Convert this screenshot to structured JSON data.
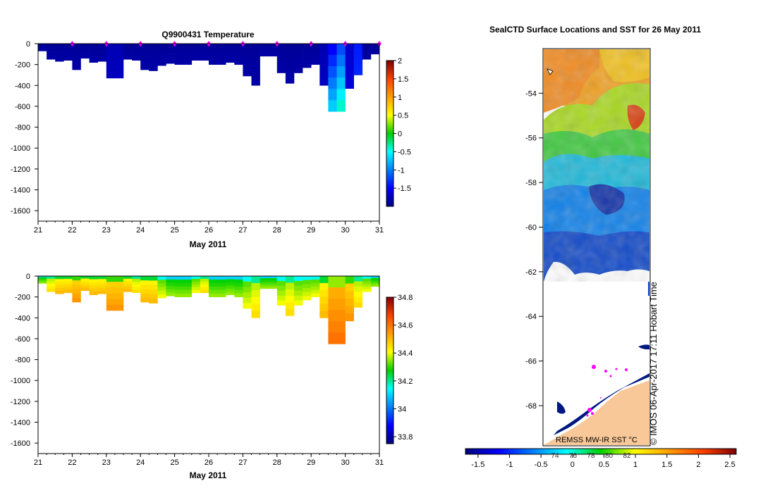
{
  "chart_data": [
    {
      "type": "heatmap",
      "title": "Q9900431  Temperature",
      "xlabel": "May 2011",
      "ylabel": "",
      "xlim": [
        21,
        31
      ],
      "ylim": [
        -1700,
        0
      ],
      "x_ticks": [
        "21",
        "22",
        "23",
        "24",
        "25",
        "26",
        "27",
        "28",
        "29",
        "30",
        "31"
      ],
      "y_ticks": [
        "0",
        "-200",
        "-400",
        "-600",
        "-800",
        "-1000",
        "-1200",
        "-1400",
        "-1600"
      ],
      "colorbar": {
        "min": -2,
        "max": 2,
        "ticks": [
          "2",
          "1.5",
          "1",
          "0.5",
          "0",
          "-0.5",
          "-1",
          "-1.5"
        ]
      },
      "profiles": [
        {
          "day": 21.0,
          "depth": 70,
          "value": -1.9
        },
        {
          "day": 21.25,
          "depth": 150,
          "value": -1.9
        },
        {
          "day": 21.5,
          "depth": 170,
          "value": -1.9
        },
        {
          "day": 21.75,
          "depth": 160,
          "value": -1.9
        },
        {
          "day": 22.0,
          "depth": 250,
          "value": -1.9
        },
        {
          "day": 22.25,
          "depth": 140,
          "value": -1.9
        },
        {
          "day": 22.5,
          "depth": 180,
          "value": -1.9
        },
        {
          "day": 22.75,
          "depth": 170,
          "value": -1.9
        },
        {
          "day": 23.0,
          "depth": 330,
          "value": -1.8
        },
        {
          "day": 23.25,
          "depth": 330,
          "value": -1.8
        },
        {
          "day": 23.5,
          "depth": 150,
          "value": -1.9
        },
        {
          "day": 23.75,
          "depth": 160,
          "value": -1.9
        },
        {
          "day": 24.0,
          "depth": 250,
          "value": -1.9
        },
        {
          "day": 24.25,
          "depth": 260,
          "value": -1.9
        },
        {
          "day": 24.5,
          "depth": 210,
          "value": -1.9
        },
        {
          "day": 24.75,
          "depth": 190,
          "value": -1.9
        },
        {
          "day": 25.0,
          "depth": 200,
          "value": -1.9
        },
        {
          "day": 25.25,
          "depth": 200,
          "value": -1.9
        },
        {
          "day": 25.5,
          "depth": 160,
          "value": -1.9
        },
        {
          "day": 25.75,
          "depth": 160,
          "value": -1.9
        },
        {
          "day": 26.0,
          "depth": 200,
          "value": -1.9
        },
        {
          "day": 26.25,
          "depth": 200,
          "value": -1.9
        },
        {
          "day": 26.5,
          "depth": 180,
          "value": -1.9
        },
        {
          "day": 26.75,
          "depth": 200,
          "value": -1.9
        },
        {
          "day": 27.0,
          "depth": 310,
          "value": -1.9
        },
        {
          "day": 27.25,
          "depth": 400,
          "value": -1.9
        },
        {
          "day": 27.5,
          "depth": 120,
          "value": -1.9
        },
        {
          "day": 27.75,
          "depth": 120,
          "value": -1.9
        },
        {
          "day": 28.0,
          "depth": 280,
          "value": -1.9
        },
        {
          "day": 28.25,
          "depth": 380,
          "value": -1.9
        },
        {
          "day": 28.5,
          "depth": 280,
          "value": -1.9
        },
        {
          "day": 28.75,
          "depth": 230,
          "value": -1.9
        },
        {
          "day": 29.0,
          "depth": 200,
          "value": -1.9
        },
        {
          "day": 29.25,
          "depth": 400,
          "value": -1.8
        },
        {
          "day": 29.5,
          "depth": 650,
          "value": -1.5
        },
        {
          "day": 29.75,
          "depth": 650,
          "value": -1.2
        },
        {
          "day": 30.0,
          "depth": 430,
          "value": -1.7
        },
        {
          "day": 30.25,
          "depth": 300,
          "value": -1.4
        },
        {
          "day": 30.5,
          "depth": 150,
          "value": -1.9
        },
        {
          "day": 30.75,
          "depth": 100,
          "value": -1.9
        }
      ],
      "surface_markers": [
        "22",
        "23",
        "24",
        "25",
        "26",
        "27",
        "28",
        "29",
        "30",
        "31"
      ]
    },
    {
      "type": "heatmap",
      "title": "",
      "xlabel": "May 2011",
      "ylabel": "",
      "xlim": [
        21,
        31
      ],
      "ylim": [
        -1700,
        0
      ],
      "x_ticks": [
        "21",
        "22",
        "23",
        "24",
        "25",
        "26",
        "27",
        "28",
        "29",
        "30",
        "31"
      ],
      "y_ticks": [
        "0",
        "-200",
        "-400",
        "-600",
        "-800",
        "-1000",
        "-1200",
        "-1400",
        "-1600"
      ],
      "colorbar": {
        "min": 33.75,
        "max": 34.8,
        "ticks": [
          "34.8",
          "34.6",
          "34.4",
          "34.2",
          "34",
          "33.8"
        ]
      },
      "profiles": [
        {
          "day": 21.0,
          "depth": 70,
          "value": 34.3
        },
        {
          "day": 21.25,
          "depth": 150,
          "value": 34.4
        },
        {
          "day": 21.5,
          "depth": 170,
          "value": 34.45
        },
        {
          "day": 21.75,
          "depth": 160,
          "value": 34.45
        },
        {
          "day": 22.0,
          "depth": 250,
          "value": 34.5
        },
        {
          "day": 22.25,
          "depth": 140,
          "value": 34.45
        },
        {
          "day": 22.5,
          "depth": 180,
          "value": 34.45
        },
        {
          "day": 22.75,
          "depth": 170,
          "value": 34.45
        },
        {
          "day": 23.0,
          "depth": 330,
          "value": 34.5
        },
        {
          "day": 23.25,
          "depth": 330,
          "value": 34.5
        },
        {
          "day": 23.5,
          "depth": 150,
          "value": 34.45
        },
        {
          "day": 23.75,
          "depth": 160,
          "value": 34.4
        },
        {
          "day": 24.0,
          "depth": 250,
          "value": 34.45
        },
        {
          "day": 24.25,
          "depth": 260,
          "value": 34.45
        },
        {
          "day": 24.5,
          "depth": 210,
          "value": 34.35
        },
        {
          "day": 24.75,
          "depth": 190,
          "value": 34.3
        },
        {
          "day": 25.0,
          "depth": 200,
          "value": 34.3
        },
        {
          "day": 25.25,
          "depth": 200,
          "value": 34.3
        },
        {
          "day": 25.5,
          "depth": 160,
          "value": 34.35
        },
        {
          "day": 25.75,
          "depth": 160,
          "value": 34.4
        },
        {
          "day": 26.0,
          "depth": 200,
          "value": 34.3
        },
        {
          "day": 26.25,
          "depth": 200,
          "value": 34.3
        },
        {
          "day": 26.5,
          "depth": 180,
          "value": 34.3
        },
        {
          "day": 26.75,
          "depth": 200,
          "value": 34.3
        },
        {
          "day": 27.0,
          "depth": 310,
          "value": 34.35
        },
        {
          "day": 27.25,
          "depth": 400,
          "value": 34.4
        },
        {
          "day": 27.5,
          "depth": 120,
          "value": 34.3
        },
        {
          "day": 27.75,
          "depth": 120,
          "value": 34.3
        },
        {
          "day": 28.0,
          "depth": 280,
          "value": 34.35
        },
        {
          "day": 28.25,
          "depth": 380,
          "value": 34.4
        },
        {
          "day": 28.5,
          "depth": 280,
          "value": 34.35
        },
        {
          "day": 28.75,
          "depth": 230,
          "value": 34.35
        },
        {
          "day": 29.0,
          "depth": 200,
          "value": 34.35
        },
        {
          "day": 29.25,
          "depth": 400,
          "value": 34.45
        },
        {
          "day": 29.5,
          "depth": 650,
          "value": 34.55
        },
        {
          "day": 29.75,
          "depth": 650,
          "value": 34.55
        },
        {
          "day": 30.0,
          "depth": 430,
          "value": 34.5
        },
        {
          "day": 30.25,
          "depth": 300,
          "value": 34.4
        },
        {
          "day": 30.5,
          "depth": 150,
          "value": 34.35
        },
        {
          "day": 30.75,
          "depth": 100,
          "value": 34.3
        }
      ]
    },
    {
      "type": "heatmap",
      "title": "SealCTD Surface Locations and SST for 26 May 2011",
      "xlabel": "",
      "ylabel": "",
      "ylim": [
        -69.8,
        -52.0
      ],
      "y_ticks": [
        "-54",
        "-56",
        "-58",
        "-60",
        "-62",
        "-64",
        "-66",
        "-68"
      ],
      "colorbar": {
        "min": -1.7,
        "max": 2.6,
        "ticks": [
          "-1.5",
          "-1",
          "-0.5",
          "0",
          "0.5",
          "1",
          "1.5",
          "2",
          "2.5"
        ],
        "secondary_ticks": [
          "74",
          "76",
          "78",
          "80",
          "82"
        ]
      },
      "source_label": "REMSS MW-IR SST °C",
      "credit": "© IMOS 06-Apr-2017 17:11 Hobart Time"
    }
  ]
}
